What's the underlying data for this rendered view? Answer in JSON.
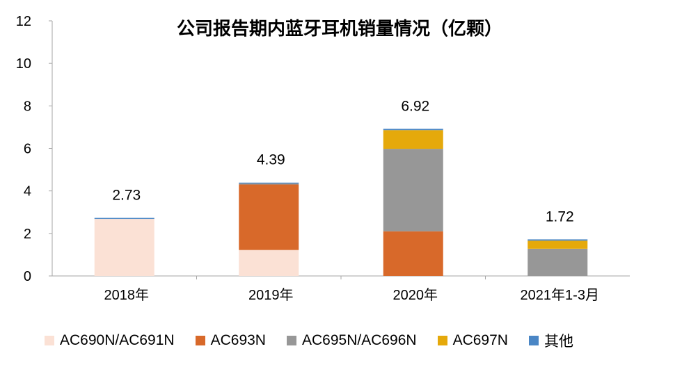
{
  "colors": {
    "AC690N/AC691N": "#fbe1d5",
    "AC693N": "#d8692a",
    "AC695N/AC696N": "#979797",
    "AC697N": "#e5a90b",
    "其他": "#4a86c5"
  },
  "chart_data": {
    "type": "bar",
    "stacked": true,
    "title": "公司报告期内蓝牙耳机销量情况（亿颗）",
    "xlabel": "",
    "ylabel": "",
    "ylim": [
      0,
      12
    ],
    "yticks": [
      "0",
      "2",
      "4",
      "6",
      "8",
      "10",
      "12"
    ],
    "grid": false,
    "legend_position": "bottom",
    "categories": [
      "2018年",
      "2019年",
      "2020年",
      "2021年1-3月"
    ],
    "totals": [
      "2.73",
      "4.39",
      "6.92",
      "1.72"
    ],
    "series": [
      {
        "name": "AC690N/AC691N",
        "values": [
          2.68,
          1.22,
          0,
          0
        ]
      },
      {
        "name": "AC693N",
        "values": [
          0,
          3.08,
          2.1,
          0
        ]
      },
      {
        "name": "AC695N/AC696N",
        "values": [
          0,
          0.05,
          3.88,
          1.28
        ]
      },
      {
        "name": "AC697N",
        "values": [
          0,
          0,
          0.88,
          0.38
        ]
      },
      {
        "name": "其他",
        "values": [
          0.05,
          0.04,
          0.06,
          0.06
        ]
      }
    ]
  }
}
